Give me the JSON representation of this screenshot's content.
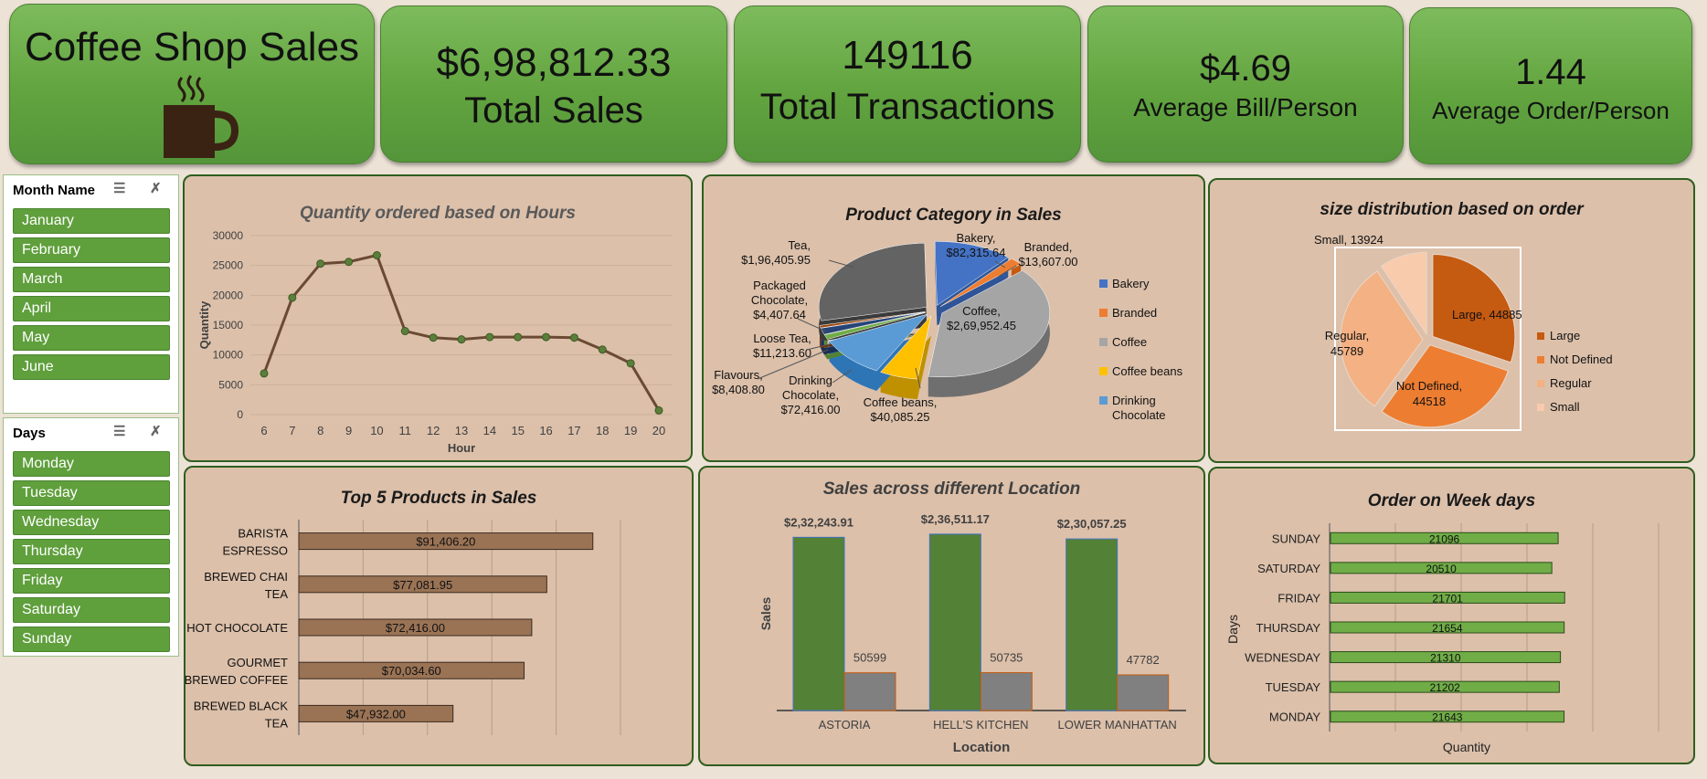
{
  "header": {
    "title": "Coffee Shop Sales",
    "icon": "coffee-cup-icon"
  },
  "kpis": [
    {
      "value": "$6,98,812.33",
      "label": "Total Sales"
    },
    {
      "value": "149116",
      "label": "Total Transactions"
    },
    {
      "value": "$4.69",
      "label": "Average Bill/Person"
    },
    {
      "value": "1.44",
      "label": "Average Order/Person"
    }
  ],
  "slicers": {
    "month": {
      "title": "Month Name",
      "items": [
        "January",
        "February",
        "March",
        "April",
        "May",
        "June"
      ]
    },
    "days": {
      "title": "Days",
      "items": [
        "Monday",
        "Tuesday",
        "Wednesday",
        "Thursday",
        "Friday",
        "Saturday",
        "Sunday"
      ]
    }
  },
  "colors": {
    "kpi_green": "#62a43f",
    "panel_bg": "#dcc0aa",
    "panel_border": "#2f5e1f",
    "line_brown": "#6b4a33",
    "bar_brown": "#9a7355",
    "location_green": "#538135",
    "location_grey": "#808080",
    "weekday_green": "#70ad47"
  },
  "chart_data": [
    {
      "type": "line",
      "title": "Quantity ordered based on Hours",
      "xlabel": "Hour",
      "ylabel": "Quantity",
      "x": [
        6,
        7,
        8,
        9,
        10,
        11,
        12,
        13,
        14,
        15,
        16,
        17,
        18,
        19,
        20
      ],
      "values": [
        6900,
        19600,
        25300,
        25600,
        26700,
        14000,
        12900,
        12600,
        13000,
        13000,
        13000,
        12900,
        10900,
        8600,
        700
      ],
      "ylim": [
        0,
        30000
      ],
      "yticks": [
        0,
        5000,
        10000,
        15000,
        20000,
        25000,
        30000
      ],
      "grid": true
    },
    {
      "type": "pie",
      "title": "Product Category in Sales",
      "categories": [
        "Bakery",
        "Branded",
        "Coffee",
        "Coffee beans",
        "Drinking Chocolate",
        "Flavours",
        "Loose Tea",
        "Packaged Chocolate",
        "Tea"
      ],
      "values": [
        82315.64,
        13607.0,
        269952.45,
        40085.25,
        72416.0,
        8408.8,
        11213.6,
        4407.64,
        196405.95
      ],
      "data_labels": [
        "Bakery, $82,315.64",
        "Branded, $13,607.00",
        "Coffee, $2,69,952.45",
        "Coffee beans, $40,085.25",
        "Drinking Chocolate, $72,416.00",
        "Flavours, $8,408.80",
        "Loose Tea, $11,213.60",
        "Packaged Chocolate, $4,407.64",
        "Tea, $1,96,405.95"
      ],
      "legend": [
        "Bakery",
        "Branded",
        "Coffee",
        "Coffee beans",
        "Drinking Chocolate"
      ],
      "legend_position": "right"
    },
    {
      "type": "pie",
      "title": "size distribution based on order",
      "categories": [
        "Large",
        "Not Defined",
        "Regular",
        "Small"
      ],
      "values": [
        44885,
        44518,
        45789,
        13924
      ],
      "data_labels": [
        "Large, 44885",
        "Not Defined, 44518",
        "Regular, 45789",
        "Small, 13924"
      ],
      "legend": [
        "Large",
        "Not Defined",
        "Regular",
        "Small"
      ],
      "legend_position": "right"
    },
    {
      "type": "bar",
      "orientation": "horizontal",
      "title": "Top 5 Products in Sales",
      "categories": [
        "BARISTA ESPRESSO",
        "BREWED CHAI TEA",
        "HOT CHOCOLATE",
        "GOURMET BREWED COFFEE",
        "BREWED BLACK TEA"
      ],
      "values": [
        91406.2,
        77081.95,
        72416.0,
        70034.6,
        47932.0
      ],
      "data_labels": [
        "$91,406.20",
        "$77,081.95",
        "$72,416.00",
        "$70,034.60",
        "$47,932.00"
      ],
      "grid": true
    },
    {
      "type": "bar",
      "title": "Sales across different Location",
      "xlabel": "Location",
      "ylabel": "Sales",
      "categories": [
        "ASTORIA",
        "HELL'S KITCHEN",
        "LOWER MANHATTAN"
      ],
      "series": [
        {
          "values": [
            232243.91,
            236511.17,
            230057.25
          ],
          "data_labels": [
            "$2,32,243.91",
            "$2,36,511.17",
            "$2,30,057.25"
          ]
        },
        {
          "values": [
            50599,
            50735,
            47782
          ],
          "data_labels": [
            "50599",
            "50735",
            "47782"
          ]
        }
      ]
    },
    {
      "type": "bar",
      "orientation": "horizontal",
      "title": "Order on Week days",
      "xlabel": "Quantity",
      "ylabel": "Days",
      "categories": [
        "SUNDAY",
        "SATURDAY",
        "FRIDAY",
        "THURSDAY",
        "WEDNESDAY",
        "TUESDAY",
        "MONDAY"
      ],
      "values": [
        21096,
        20510,
        21701,
        21654,
        21310,
        21202,
        21643
      ],
      "grid": true
    }
  ]
}
